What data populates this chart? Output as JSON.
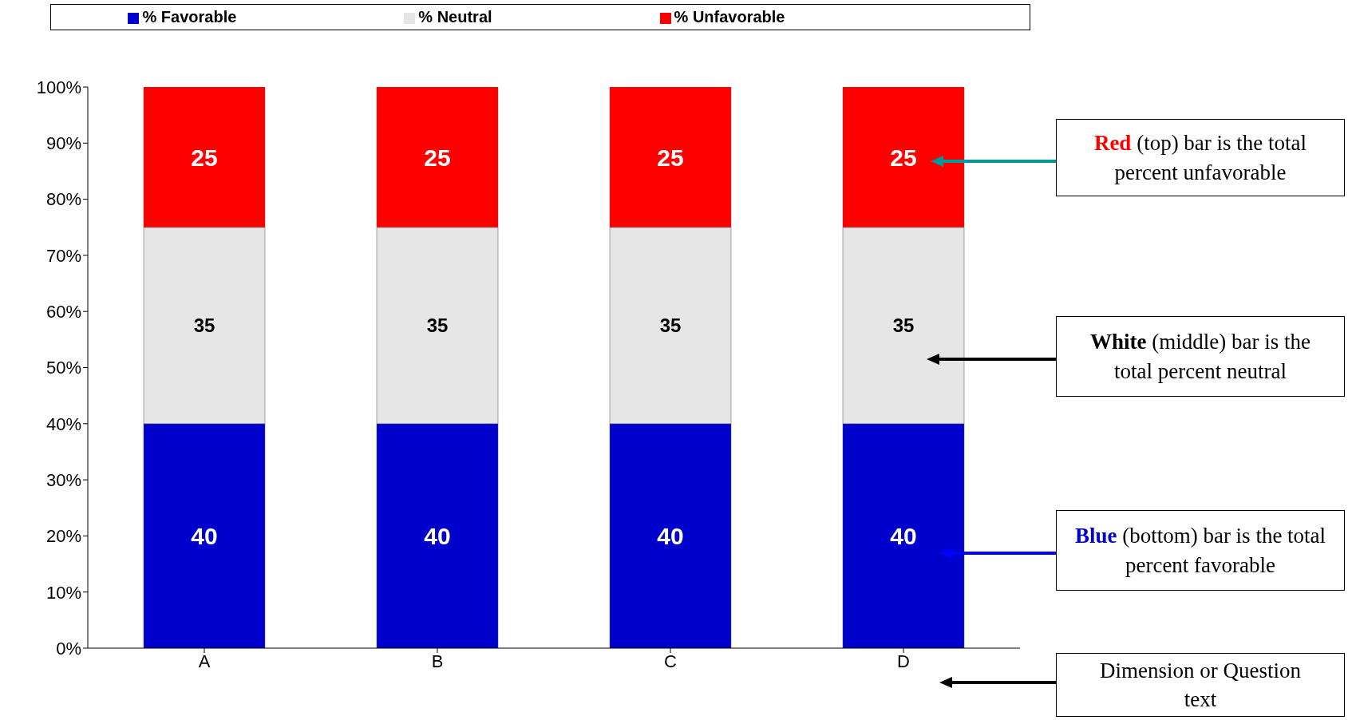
{
  "chart_data": {
    "type": "bar",
    "stacked": true,
    "categories": [
      "A",
      "B",
      "C",
      "D"
    ],
    "series": [
      {
        "name": "% Favorable",
        "color": "#0000cc",
        "values": [
          40,
          40,
          40,
          40
        ]
      },
      {
        "name": "% Neutral",
        "color": "#e6e6e6",
        "values": [
          35,
          35,
          35,
          35
        ]
      },
      {
        "name": "% Unfavorable",
        "color": "#ff0000",
        "values": [
          25,
          25,
          25,
          25
        ]
      }
    ],
    "ylim": [
      0,
      100
    ],
    "yticks": [
      {
        "value": 0,
        "label": "0%"
      },
      {
        "value": 10,
        "label": "10%"
      },
      {
        "value": 20,
        "label": "20%"
      },
      {
        "value": 30,
        "label": "30%"
      },
      {
        "value": 40,
        "label": "40%"
      },
      {
        "value": 50,
        "label": "50%"
      },
      {
        "value": 60,
        "label": "60%"
      },
      {
        "value": 70,
        "label": "70%"
      },
      {
        "value": 80,
        "label": "80%"
      },
      {
        "value": 90,
        "label": "90%"
      },
      {
        "value": 100,
        "label": "100%"
      }
    ],
    "data_labels": true,
    "legend": "top",
    "grid": false,
    "annotations": [
      "Red (top) bar is the total percent unfavorable",
      "White (middle) bar is the total percent neutral",
      "Blue (bottom) bar is the total percent favorable",
      "Dimension or Question text"
    ]
  }
}
